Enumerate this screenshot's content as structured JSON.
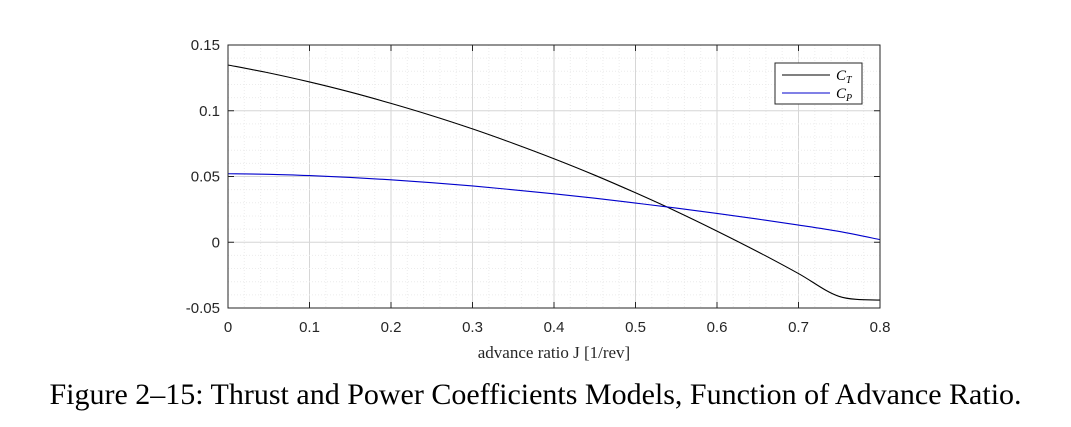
{
  "caption": "Figure 2–15: Thrust and Power Coefficients Models, Function of Advance Ratio.",
  "chart_data": {
    "type": "line",
    "title": "",
    "xlabel": "advance ratio J [1/rev]",
    "ylabel": "",
    "xlim": [
      0,
      0.8
    ],
    "ylim": [
      -0.05,
      0.15
    ],
    "x_ticks": [
      "0",
      "0.1",
      "0.2",
      "0.3",
      "0.4",
      "0.5",
      "0.6",
      "0.7",
      "0.8"
    ],
    "y_ticks": [
      "-0.05",
      "0",
      "0.05",
      "0.1",
      "0.15"
    ],
    "grid": "on (major and minor)",
    "legend_position": "top-right",
    "x": [
      0,
      0.05,
      0.1,
      0.15,
      0.2,
      0.25,
      0.3,
      0.35,
      0.4,
      0.45,
      0.5,
      0.55,
      0.6,
      0.65,
      0.7,
      0.75,
      0.8
    ],
    "series": [
      {
        "name": "C_T",
        "color": "#000000",
        "values": [
          0.1348,
          0.1288,
          0.1219,
          0.1142,
          0.1056,
          0.0963,
          0.0862,
          0.0752,
          0.0635,
          0.051,
          0.0376,
          0.0235,
          0.0085,
          -0.0072,
          -0.0238,
          -0.0412,
          -0.044
        ]
      },
      {
        "name": "C_P",
        "color": "#0000cc",
        "values": [
          0.0521,
          0.0517,
          0.0507,
          0.0493,
          0.0475,
          0.0453,
          0.0428,
          0.0399,
          0.0368,
          0.0335,
          0.0298,
          0.026,
          0.0219,
          0.0176,
          0.0131,
          0.0082,
          0.002
        ]
      }
    ]
  }
}
